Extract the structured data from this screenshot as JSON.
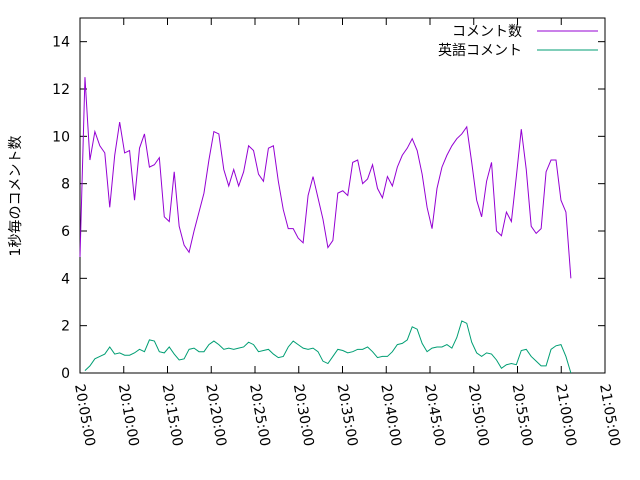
{
  "chart_data": {
    "type": "line",
    "y_label": "1秒毎のコメント数",
    "x": [
      "20:05:00",
      "20:05:34",
      "20:06:08",
      "20:06:42",
      "20:07:16",
      "20:07:50",
      "20:08:24",
      "20:08:58",
      "20:09:32",
      "20:10:06",
      "20:10:40",
      "20:11:14",
      "20:11:48",
      "20:12:22",
      "20:12:56",
      "20:13:30",
      "20:14:04",
      "20:14:38",
      "20:15:12",
      "20:15:46",
      "20:16:20",
      "20:16:54",
      "20:17:28",
      "20:18:02",
      "20:18:36",
      "20:19:10",
      "20:19:44",
      "20:20:18",
      "20:20:52",
      "20:21:26",
      "20:22:00",
      "20:22:34",
      "20:23:08",
      "20:23:42",
      "20:24:16",
      "20:24:50",
      "20:25:24",
      "20:25:58",
      "20:26:32",
      "20:27:06",
      "20:27:40",
      "20:28:14",
      "20:28:48",
      "20:29:22",
      "20:29:56",
      "20:30:30",
      "20:31:04",
      "20:31:38",
      "20:32:12",
      "20:32:46",
      "20:33:20",
      "20:33:54",
      "20:34:28",
      "20:35:02",
      "20:35:36",
      "20:36:10",
      "20:36:44",
      "20:37:18",
      "20:37:52",
      "20:38:26",
      "20:39:00",
      "20:39:34",
      "20:40:08",
      "20:40:42",
      "20:41:16",
      "20:41:50",
      "20:42:24",
      "20:42:58",
      "20:43:32",
      "20:44:06",
      "20:44:40",
      "20:45:14",
      "20:45:48",
      "20:46:22",
      "20:46:56",
      "20:47:30",
      "20:48:04",
      "20:48:38",
      "20:49:12",
      "20:49:46",
      "20:50:20",
      "20:50:54",
      "20:51:28",
      "20:52:02",
      "20:52:36",
      "20:53:10",
      "20:53:44",
      "20:54:18",
      "20:54:52",
      "20:55:26",
      "20:56:00",
      "20:56:34",
      "20:57:08",
      "20:57:42",
      "20:58:16",
      "20:58:50",
      "20:59:24",
      "20:59:58",
      "21:00:32",
      "21:01:06"
    ],
    "series": [
      {
        "name": "コメント数",
        "color": "#9400d3",
        "values": [
          4.9,
          12.5,
          9.0,
          10.2,
          9.6,
          9.3,
          7.0,
          9.2,
          10.6,
          9.3,
          9.4,
          7.3,
          9.5,
          10.1,
          8.7,
          8.8,
          9.1,
          6.6,
          6.4,
          8.5,
          6.2,
          5.4,
          5.1,
          6.0,
          6.8,
          7.6,
          9.0,
          10.2,
          10.1,
          8.6,
          7.9,
          8.6,
          7.9,
          8.5,
          9.6,
          9.4,
          8.4,
          8.1,
          9.5,
          9.6,
          8.1,
          6.9,
          6.1,
          6.1,
          5.7,
          5.5,
          7.5,
          8.3,
          7.4,
          6.5,
          5.3,
          5.6,
          7.6,
          7.7,
          7.5,
          8.9,
          9.0,
          8.0,
          8.2,
          8.8,
          7.8,
          7.4,
          8.3,
          7.9,
          8.7,
          9.2,
          9.5,
          9.9,
          9.4,
          8.4,
          7.0,
          6.1,
          7.8,
          8.7,
          9.2,
          9.6,
          9.9,
          10.1,
          10.4,
          8.9,
          7.3,
          6.6,
          8.1,
          8.9,
          6.0,
          5.8,
          6.8,
          6.4,
          8.3,
          10.3,
          8.6,
          6.2,
          5.9,
          6.1,
          8.5,
          9.0,
          9.0,
          7.3,
          6.8,
          4.0
        ]
      },
      {
        "name": "英語コメント",
        "color": "#009e73",
        "values": [
          null,
          0.1,
          0.3,
          0.6,
          0.7,
          0.8,
          1.1,
          0.8,
          0.85,
          0.75,
          0.75,
          0.85,
          1.0,
          0.9,
          1.4,
          1.35,
          0.9,
          0.85,
          1.1,
          0.8,
          0.55,
          0.6,
          1.0,
          1.05,
          0.9,
          0.9,
          1.2,
          1.35,
          1.2,
          1.0,
          1.05,
          1.0,
          1.05,
          1.1,
          1.3,
          1.2,
          0.9,
          0.95,
          1.0,
          0.8,
          0.65,
          0.7,
          1.1,
          1.35,
          1.2,
          1.05,
          1.0,
          1.05,
          0.9,
          0.5,
          0.4,
          0.7,
          1.0,
          0.95,
          0.85,
          0.9,
          1.0,
          1.0,
          1.1,
          0.9,
          0.65,
          0.7,
          0.7,
          0.9,
          1.2,
          1.25,
          1.4,
          1.95,
          1.85,
          1.25,
          0.9,
          1.05,
          1.1,
          1.1,
          1.2,
          1.05,
          1.5,
          2.2,
          2.1,
          1.3,
          0.85,
          0.7,
          0.85,
          0.8,
          0.55,
          0.2,
          0.35,
          0.4,
          0.35,
          0.95,
          1.0,
          0.7,
          0.5,
          0.3,
          0.3,
          1.0,
          1.15,
          1.2,
          0.7,
          0.0
        ]
      }
    ],
    "xlim": [
      "20:05:00",
      "21:05:00"
    ],
    "xticks": [
      "20:05:00",
      "20:10:00",
      "20:15:00",
      "20:20:00",
      "20:25:00",
      "20:30:00",
      "20:35:00",
      "20:40:00",
      "20:45:00",
      "20:50:00",
      "20:55:00",
      "21:00:00",
      "21:05:00"
    ],
    "ylim": [
      0,
      15
    ],
    "yticks": [
      0,
      2,
      4,
      6,
      8,
      10,
      12,
      14
    ],
    "legend": "top-right"
  }
}
